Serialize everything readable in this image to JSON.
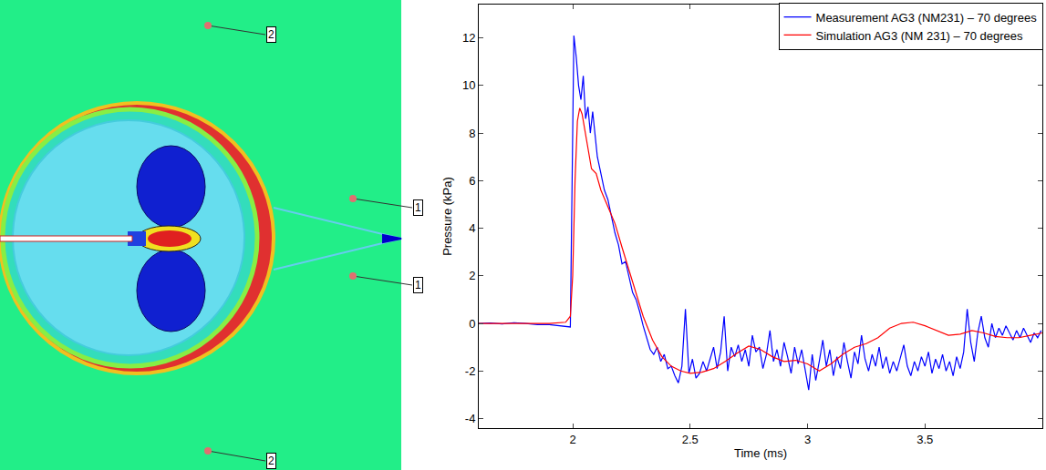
{
  "chart_data": {
    "type": "line",
    "x_label": "Time (ms)",
    "y_label": "Pressure (kPa)",
    "xlim": [
      1.6,
      4.0
    ],
    "ylim": [
      -4.4,
      13.4
    ],
    "xticks": [
      2,
      2.5,
      3,
      3.5
    ],
    "yticks": [
      -4,
      -2,
      0,
      2,
      4,
      6,
      8,
      10,
      12
    ],
    "grid": false,
    "legend": "upper right",
    "series": [
      {
        "name": "Measurement AG3 (NM231) – 70 degrees",
        "color": "#0000ff",
        "x": [
          1.6,
          1.65,
          1.7,
          1.75,
          1.8,
          1.85,
          1.9,
          1.95,
          1.99,
          2.005,
          2.015,
          2.025,
          2.035,
          2.045,
          2.055,
          2.065,
          2.075,
          2.085,
          2.095,
          2.105,
          2.12,
          2.135,
          2.15,
          2.165,
          2.18,
          2.195,
          2.21,
          2.225,
          2.24,
          2.255,
          2.27,
          2.285,
          2.3,
          2.315,
          2.33,
          2.345,
          2.36,
          2.375,
          2.39,
          2.405,
          2.42,
          2.435,
          2.45,
          2.465,
          2.48,
          2.495,
          2.51,
          2.525,
          2.54,
          2.555,
          2.57,
          2.585,
          2.6,
          2.615,
          2.63,
          2.645,
          2.66,
          2.675,
          2.69,
          2.705,
          2.72,
          2.735,
          2.75,
          2.765,
          2.78,
          2.795,
          2.81,
          2.825,
          2.84,
          2.855,
          2.87,
          2.885,
          2.9,
          2.915,
          2.93,
          2.945,
          2.96,
          2.975,
          2.99,
          3.005,
          3.02,
          3.035,
          3.05,
          3.065,
          3.08,
          3.095,
          3.11,
          3.125,
          3.14,
          3.155,
          3.17,
          3.185,
          3.2,
          3.215,
          3.23,
          3.245,
          3.26,
          3.275,
          3.29,
          3.305,
          3.32,
          3.335,
          3.35,
          3.365,
          3.38,
          3.395,
          3.41,
          3.425,
          3.44,
          3.455,
          3.47,
          3.485,
          3.5,
          3.515,
          3.53,
          3.545,
          3.56,
          3.575,
          3.59,
          3.605,
          3.62,
          3.635,
          3.65,
          3.665,
          3.68,
          3.695,
          3.71,
          3.725,
          3.74,
          3.755,
          3.77,
          3.785,
          3.8,
          3.815,
          3.83,
          3.845,
          3.86,
          3.875,
          3.89,
          3.905,
          3.92,
          3.935,
          3.95,
          3.965,
          3.98,
          3.995
        ],
        "values": [
          0,
          0.02,
          -0.02,
          0.03,
          0,
          -0.05,
          -0.05,
          -0.1,
          -0.15,
          12.1,
          11.2,
          10.0,
          9.4,
          10.4,
          8.6,
          9.1,
          8.0,
          8.9,
          7.8,
          7.0,
          6.3,
          5.6,
          5.2,
          4.5,
          3.8,
          3.3,
          2.5,
          2.6,
          1.9,
          1.3,
          1.0,
          0.5,
          -0.1,
          -0.6,
          -1.1,
          -1.3,
          -1.0,
          -1.6,
          -1.3,
          -1.9,
          -1.8,
          -2.2,
          -2.5,
          -1.8,
          0.6,
          -2.1,
          -1.5,
          -2.3,
          -2.1,
          -1.6,
          -2.0,
          -1.5,
          -1.0,
          -1.9,
          -1.2,
          0.3,
          -2.0,
          -1.0,
          -1.4,
          -0.9,
          -1.6,
          -1.1,
          -1.8,
          -0.5,
          -1.2,
          -1.0,
          -1.9,
          -1.3,
          -0.3,
          -1.6,
          -1.1,
          -1.8,
          -0.8,
          -1.4,
          -2.1,
          -1.0,
          -1.7,
          -1.1,
          -2.0,
          -2.8,
          -1.3,
          -2.4,
          -1.6,
          -0.7,
          -1.8,
          -1.1,
          -2.2,
          -1.4,
          -1.9,
          -0.8,
          -1.6,
          -2.3,
          -1.2,
          -1.7,
          -0.5,
          -1.5,
          -2.0,
          -1.3,
          -1.8,
          -1.0,
          -1.9,
          -1.4,
          -2.1,
          -1.6,
          -2.0,
          -1.5,
          -0.9,
          -1.8,
          -2.2,
          -1.6,
          -2.0,
          -1.4,
          -1.8,
          -1.2,
          -2.1,
          -1.5,
          -1.9,
          -1.3,
          -2.0,
          -1.6,
          -2.2,
          -1.4,
          -1.9,
          -1.2,
          0.6,
          -0.8,
          -1.6,
          -0.4,
          0.3,
          -0.6,
          -1.0,
          0.0,
          -0.6,
          -0.2,
          -0.5,
          -0.1,
          -0.4,
          -0.7,
          -0.3,
          -0.6,
          -0.2,
          -0.5,
          -0.8,
          -0.4,
          -0.6,
          -0.3
        ]
      },
      {
        "name": "Simulation AG3 (NM 231) – 70 degrees",
        "color": "#ff0000",
        "x": [
          1.6,
          1.9,
          1.97,
          1.99,
          2.0,
          2.01,
          2.02,
          2.03,
          2.04,
          2.06,
          2.08,
          2.1,
          2.12,
          2.15,
          2.18,
          2.21,
          2.24,
          2.27,
          2.3,
          2.34,
          2.38,
          2.42,
          2.46,
          2.5,
          2.55,
          2.6,
          2.65,
          2.7,
          2.75,
          2.8,
          2.85,
          2.9,
          2.95,
          3.0,
          3.05,
          3.1,
          3.15,
          3.2,
          3.25,
          3.3,
          3.35,
          3.4,
          3.45,
          3.5,
          3.55,
          3.6,
          3.65,
          3.7,
          3.75,
          3.8,
          3.85,
          3.9,
          3.95,
          4.0
        ],
        "values": [
          0,
          0,
          0.05,
          0.3,
          2.0,
          6.0,
          8.5,
          9.05,
          8.8,
          7.6,
          6.5,
          6.3,
          5.6,
          4.9,
          4.2,
          3.2,
          2.2,
          1.2,
          0.3,
          -0.7,
          -1.4,
          -1.8,
          -2.0,
          -2.1,
          -2.05,
          -1.9,
          -1.6,
          -1.25,
          -0.95,
          -1.1,
          -1.4,
          -1.6,
          -1.55,
          -1.7,
          -2.0,
          -1.7,
          -1.3,
          -1.0,
          -0.85,
          -0.6,
          -0.2,
          0.0,
          0.05,
          -0.1,
          -0.3,
          -0.5,
          -0.45,
          -0.3,
          -0.4,
          -0.55,
          -0.6,
          -0.6,
          -0.5,
          -0.4
        ]
      }
    ]
  },
  "simulation_field": {
    "probe_labels": [
      "2",
      "1",
      "1",
      "2"
    ]
  }
}
